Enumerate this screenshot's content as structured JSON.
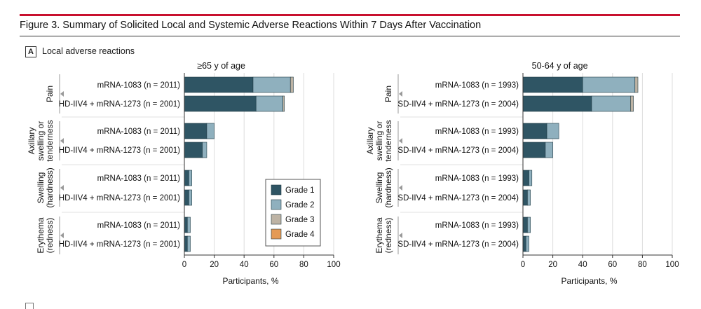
{
  "figure": {
    "title": "Figure 3. Summary of Solicited Local and Systemic Adverse Reactions Within 7 Days After Vaccination",
    "panel_letter": "A",
    "panel_label": "Local adverse reactions"
  },
  "colors": {
    "Grade 1": "#2f5564",
    "Grade 2": "#8fb0be",
    "Grade 3": "#bdb3a4",
    "Grade 4": "#e49a55",
    "accent_rule": "#c8102e"
  },
  "chart_data": [
    {
      "type": "bar",
      "orientation": "horizontal",
      "stacked": true,
      "title": "≥65 y of age",
      "xlabel": "Participants, %",
      "xlim": [
        0,
        100
      ],
      "xticks": [
        0,
        20,
        40,
        60,
        80,
        100
      ],
      "grid": true,
      "groups": [
        {
          "label": "Pain",
          "bars": [
            {
              "label": "mRNA-1083 (n = 2011)",
              "values": [
                46,
                25,
                2,
                0
              ]
            },
            {
              "label": "HD-IIV4 + mRNA-1273 (n = 2001)",
              "values": [
                48,
                18,
                1,
                0
              ]
            }
          ]
        },
        {
          "label": "Axillary swelling or tenderness",
          "bars": [
            {
              "label": "mRNA-1083 (n = 2011)",
              "values": [
                15,
                5,
                0,
                0
              ]
            },
            {
              "label": "HD-IIV4 + mRNA-1273 (n = 2001)",
              "values": [
                12,
                3,
                0,
                0
              ]
            }
          ]
        },
        {
          "label": "Swelling (hardness)",
          "bars": [
            {
              "label": "mRNA-1083 (n = 2011)",
              "values": [
                3,
                2,
                0,
                0
              ]
            },
            {
              "label": "HD-IIV4 + mRNA-1273 (n = 2001)",
              "values": [
                3,
                2,
                0,
                0
              ]
            }
          ]
        },
        {
          "label": "Erythema (redness)",
          "bars": [
            {
              "label": "mRNA-1083 (n = 2011)",
              "values": [
                2,
                2,
                0,
                0
              ]
            },
            {
              "label": "HD-IIV4 + mRNA-1273 (n = 2001)",
              "values": [
                2,
                2,
                0,
                0
              ]
            }
          ]
        }
      ]
    },
    {
      "type": "bar",
      "orientation": "horizontal",
      "stacked": true,
      "title": "50-64 y of age",
      "xlabel": "Participants, %",
      "xlim": [
        0,
        100
      ],
      "xticks": [
        0,
        20,
        40,
        60,
        80,
        100
      ],
      "grid": true,
      "groups": [
        {
          "label": "Pain",
          "bars": [
            {
              "label": "mRNA-1083 (n = 1993)",
              "values": [
                40,
                35,
                2,
                0
              ]
            },
            {
              "label": "SD-IIV4 + mRNA-1273 (n = 2004)",
              "values": [
                46,
                26,
                2,
                0
              ]
            }
          ]
        },
        {
          "label": "Axillary swelling or tenderness",
          "bars": [
            {
              "label": "mRNA-1083 (n = 1993)",
              "values": [
                16,
                8,
                0,
                0
              ]
            },
            {
              "label": "SD-IIV4 + mRNA-1273 (n = 2004)",
              "values": [
                15,
                5,
                0,
                0
              ]
            }
          ]
        },
        {
          "label": "Swelling (hardness)",
          "bars": [
            {
              "label": "mRNA-1083 (n = 1993)",
              "values": [
                4,
                2,
                0,
                0
              ]
            },
            {
              "label": "SD-IIV4 + mRNA-1273 (n = 2004)",
              "values": [
                3,
                2,
                0,
                0
              ]
            }
          ]
        },
        {
          "label": "Erythema (redness)",
          "bars": [
            {
              "label": "mRNA-1083 (n = 1993)",
              "values": [
                3,
                2,
                0,
                0
              ]
            },
            {
              "label": "SD-IIV4 + mRNA-1273 (n = 2004)",
              "values": [
                2,
                2,
                0,
                0
              ]
            }
          ]
        }
      ]
    }
  ],
  "legend": {
    "placement": "center",
    "entries": [
      "Grade 1",
      "Grade 2",
      "Grade 3",
      "Grade 4"
    ]
  }
}
